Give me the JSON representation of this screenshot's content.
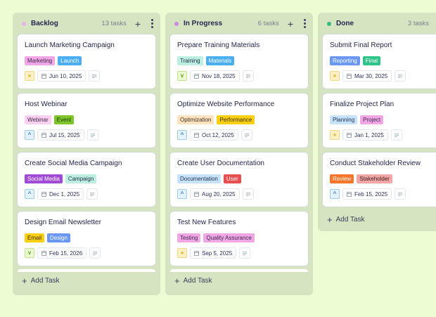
{
  "columns": [
    {
      "title": "Backlog",
      "count": "13 tasks",
      "dot_color": "#e8b4e4",
      "add_task_label": "Add Task",
      "cards": [
        {
          "title": "Launch Marketing Campaign",
          "tags": [
            {
              "label": "Marketing",
              "bg": "#f1a7e6",
              "fg": "#3d2a4a"
            },
            {
              "label": "Launch",
              "bg": "#4aaef0",
              "fg": "#ffffff"
            }
          ],
          "priority": "high",
          "priority_glyph": "»",
          "date": "Jun 10, 2025"
        },
        {
          "title": "Host Webinar",
          "tags": [
            {
              "label": "Webinar",
              "bg": "#fbd0f1",
              "fg": "#3d2a4a"
            },
            {
              "label": "Event",
              "bg": "#7fc52a",
              "fg": "#1e3a0a"
            }
          ],
          "priority": "medium",
          "priority_glyph": "^",
          "date": "Jul 15, 2025"
        },
        {
          "title": "Create Social Media Campaign",
          "tags": [
            {
              "label": "Social Media",
              "bg": "#a14ad6",
              "fg": "#ffffff"
            },
            {
              "label": "Campaign",
              "bg": "#bdefe1",
              "fg": "#24304a"
            }
          ],
          "priority": "medium",
          "priority_glyph": "^",
          "date": "Dec 1, 2025"
        },
        {
          "title": "Design Email Newsletter",
          "tags": [
            {
              "label": "Email",
              "bg": "#f9cf0f",
              "fg": "#3a2f00"
            },
            {
              "label": "Design",
              "bg": "#6a97f3",
              "fg": "#ffffff"
            }
          ],
          "priority": "low",
          "priority_glyph": "v",
          "date": "Feb 15, 2026"
        }
      ]
    },
    {
      "title": "In Progress",
      "count": "6 tasks",
      "dot_color": "#c98be0",
      "add_task_label": "Add Task",
      "cards": [
        {
          "title": "Prepare Training Materials",
          "tags": [
            {
              "label": "Training",
              "bg": "#bdefe1",
              "fg": "#24304a"
            },
            {
              "label": "Materials",
              "bg": "#4aaef0",
              "fg": "#ffffff"
            }
          ],
          "priority": "low",
          "priority_glyph": "v",
          "date": "Nov 18, 2025"
        },
        {
          "title": "Optimize Website Performance",
          "tags": [
            {
              "label": "Optimization",
              "bg": "#fde3bf",
              "fg": "#3a2f20"
            },
            {
              "label": "Performance",
              "bg": "#f9cf0f",
              "fg": "#3a2f00"
            }
          ],
          "priority": "medium",
          "priority_glyph": "^",
          "date": "Oct 12, 2025"
        },
        {
          "title": "Create User Documentation",
          "tags": [
            {
              "label": "Documentation",
              "bg": "#c6e3fb",
              "fg": "#24304a"
            },
            {
              "label": "User",
              "bg": "#e84f4f",
              "fg": "#ffffff"
            }
          ],
          "priority": "medium",
          "priority_glyph": "^",
          "date": "Aug 20, 2025"
        },
        {
          "title": "Test New Features",
          "tags": [
            {
              "label": "Testing",
              "bg": "#f1a7e6",
              "fg": "#3d2a4a"
            },
            {
              "label": "Quality Assurance",
              "bg": "#f1a7e6",
              "fg": "#3d2a4a"
            }
          ],
          "priority": "high",
          "priority_glyph": "»",
          "date": "Sep 5, 2025"
        }
      ]
    },
    {
      "title": "Done",
      "count": "3 tasks",
      "dot_color": "#2fbf7f",
      "add_task_label": "Add Task",
      "cards": [
        {
          "title": "Submit Final Report",
          "tags": [
            {
              "label": "Reporting",
              "bg": "#6a97f3",
              "fg": "#ffffff"
            },
            {
              "label": "Final",
              "bg": "#2fc48a",
              "fg": "#ffffff"
            }
          ],
          "priority": "high",
          "priority_glyph": "»",
          "date": "Mar 30, 2025"
        },
        {
          "title": "Finalize Project Plan",
          "tags": [
            {
              "label": "Planning",
              "bg": "#c6e3fb",
              "fg": "#24304a"
            },
            {
              "label": "Project",
              "bg": "#f1a7e6",
              "fg": "#3d2a4a"
            }
          ],
          "priority": "high",
          "priority_glyph": "»",
          "date": "Jan 1, 2025"
        },
        {
          "title": "Conduct Stakeholder Review",
          "tags": [
            {
              "label": "Review",
              "bg": "#f7762a",
              "fg": "#ffffff"
            },
            {
              "label": "Stakeholder",
              "bg": "#f4a6a6",
              "fg": "#3d2020"
            }
          ],
          "priority": "medium",
          "priority_glyph": "^",
          "date": "Feb 15, 2025"
        }
      ]
    }
  ]
}
